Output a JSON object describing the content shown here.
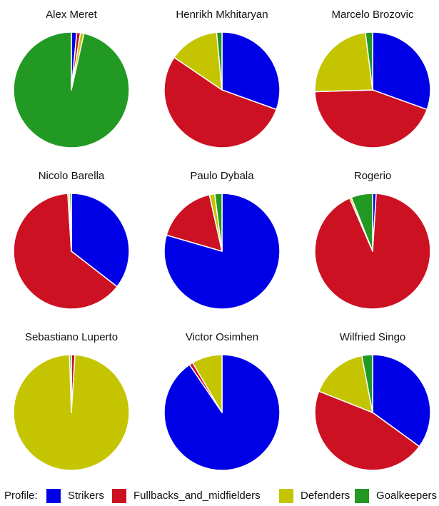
{
  "legend": {
    "title": "Profile:",
    "entries": [
      {
        "label": "Strikers",
        "color": "#0000E6"
      },
      {
        "label": "Fullbacks_and_midfielders",
        "color": "#CC1122"
      },
      {
        "label": "Defenders",
        "color": "#C4C400"
      },
      {
        "label": "Goalkeepers",
        "color": "#229922"
      }
    ],
    "placement": "bottom"
  },
  "chart_data": [
    {
      "type": "pie",
      "title": "Alex Meret",
      "categories": [
        "Strikers",
        "Fullbacks_and_midfielders",
        "Defenders",
        "Goalkeepers"
      ],
      "values": [
        1.5,
        1.0,
        1.0,
        96.5
      ]
    },
    {
      "type": "pie",
      "title": "Henrikh Mkhitaryan",
      "categories": [
        "Strikers",
        "Fullbacks_and_midfielders",
        "Defenders",
        "Goalkeepers"
      ],
      "values": [
        30.5,
        54,
        14,
        1.5
      ]
    },
    {
      "type": "pie",
      "title": "Marcelo Brozovic",
      "categories": [
        "Strikers",
        "Fullbacks_and_midfielders",
        "Defenders",
        "Goalkeepers"
      ],
      "values": [
        30.5,
        44,
        23.5,
        2
      ]
    },
    {
      "type": "pie",
      "title": "Nicolo Barella",
      "categories": [
        "Strikers",
        "Fullbacks_and_midfielders",
        "Defenders",
        "Goalkeepers"
      ],
      "values": [
        35.5,
        63.5,
        0.5,
        0.5
      ]
    },
    {
      "type": "pie",
      "title": "Paulo Dybala",
      "categories": [
        "Strikers",
        "Fullbacks_and_midfielders",
        "Defenders",
        "Goalkeepers"
      ],
      "values": [
        79.5,
        17,
        1.5,
        2
      ]
    },
    {
      "type": "pie",
      "title": "Rogerio",
      "categories": [
        "Strikers",
        "Fullbacks_and_midfielders",
        "Defenders",
        "Goalkeepers"
      ],
      "values": [
        1,
        92.5,
        0.5,
        6
      ]
    },
    {
      "type": "pie",
      "title": "Sebastiano Luperto",
      "categories": [
        "Strikers",
        "Fullbacks_and_midfielders",
        "Defenders",
        "Goalkeepers"
      ],
      "values": [
        0,
        1,
        98.5,
        0.5
      ]
    },
    {
      "type": "pie",
      "title": "Victor Osimhen",
      "categories": [
        "Strikers",
        "Fullbacks_and_midfielders",
        "Defenders",
        "Goalkeepers"
      ],
      "values": [
        90.5,
        1,
        8.5,
        0
      ]
    },
    {
      "type": "pie",
      "title": "Wilfried Singo",
      "categories": [
        "Strikers",
        "Fullbacks_and_midfielders",
        "Defenders",
        "Goalkeepers"
      ],
      "values": [
        35,
        46,
        16,
        3
      ]
    }
  ]
}
